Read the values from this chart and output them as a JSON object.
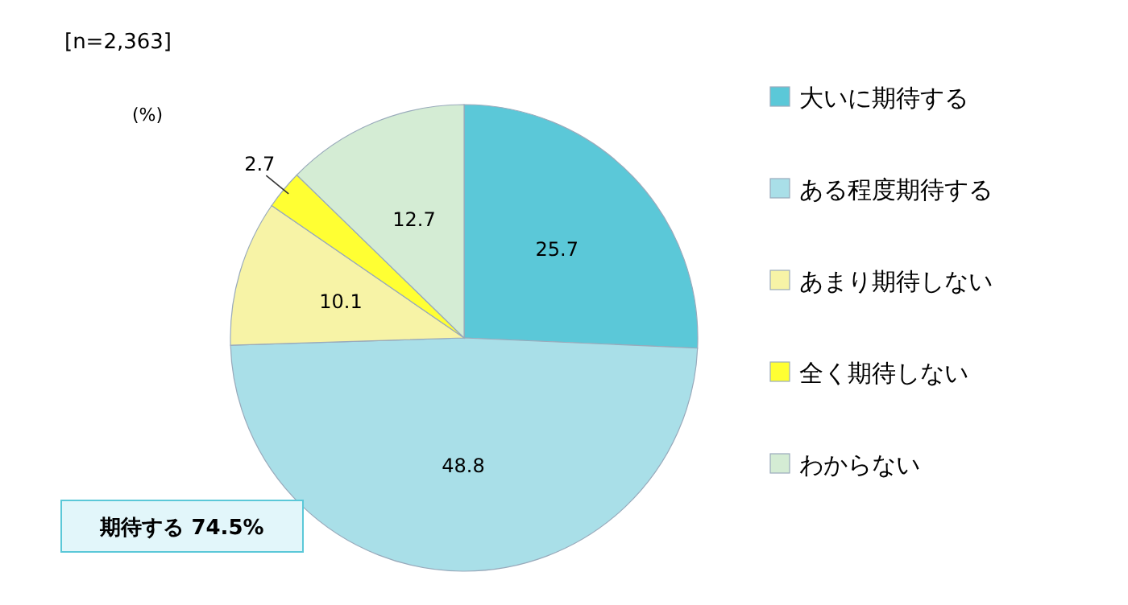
{
  "chart_data": {
    "type": "pie",
    "categories": [
      "大いに期待する",
      "ある程度期待する",
      "あまり期待しない",
      "全く期待しない",
      "わからない"
    ],
    "values": [
      25.7,
      48.8,
      10.1,
      2.7,
      12.7
    ],
    "colors": [
      "#5bc8d8",
      "#a9dfe8",
      "#f7f3a6",
      "#ffff33",
      "#d4ecd4"
    ],
    "data_labels": true,
    "legend": "right",
    "annotations": [
      "[n=2,363]",
      "(%)",
      "期待する  74.5%"
    ]
  }
}
